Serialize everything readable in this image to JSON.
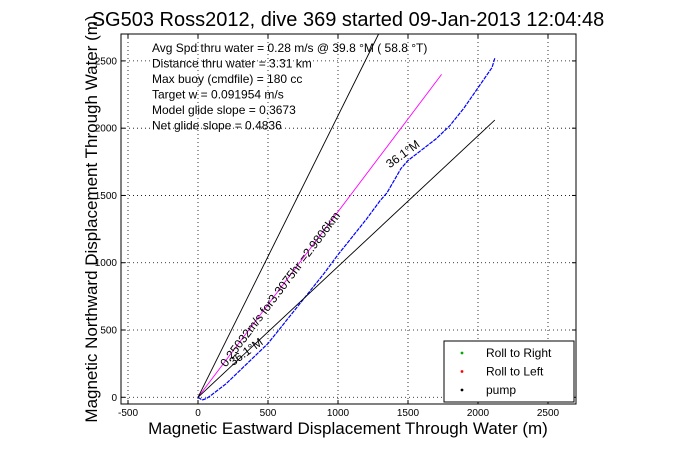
{
  "chart_data": {
    "type": "line",
    "title": "SG503 Ross2012, dive 369 started 09-Jan-2013 12:04:48",
    "xlabel": "Magnetic Eastward Displacement Through Water (m)",
    "ylabel": "Magnetic Northward Displacement Through Water (m)",
    "xlim": [
      -550,
      2700
    ],
    "ylim": [
      -50,
      2700
    ],
    "xticks": [
      -500,
      0,
      500,
      1000,
      1500,
      2000,
      2500
    ],
    "yticks": [
      0,
      500,
      1000,
      1500,
      2000,
      2500
    ],
    "xtick_labels": [
      "-500",
      "0",
      "500",
      "1000",
      "1500",
      "2000",
      "2500"
    ],
    "ytick_labels": [
      "0",
      "500",
      "1000",
      "1500",
      "2000",
      "2500"
    ],
    "grid": true,
    "info_lines": [
      "Avg Spd thru water =  0.28 m/s @  39.8   °M ( 58.8 °T)",
      "Distance thru water =  3.31 km",
      "Max buoy (cmdfile) = 180 cc",
      "Target w = 0.091954 m/s",
      "Model glide slope = 0.3673",
      "Net glide slope = 0.4836"
    ],
    "annotations": [
      {
        "text": "36.1°M",
        "x": 1370,
        "y": 1700,
        "angle": 36.1
      },
      {
        "text": "0.25032m/s for3.3075hr =2.9806km",
        "x": 200,
        "y": 220,
        "angle": 53
      },
      {
        "text": "36.1°M",
        "x": 250,
        "y": 230,
        "angle": 36.1
      }
    ],
    "series": [
      {
        "kind": "track",
        "color": "#0000ff",
        "x": [
          0,
          30,
          60,
          100,
          150,
          200,
          300,
          400,
          500,
          600,
          700,
          800,
          900,
          1000,
          1100,
          1200,
          1300,
          1350,
          1400,
          1450,
          1500,
          1600,
          1700,
          1800,
          1900,
          2000,
          2100,
          2120
        ],
        "y": [
          0,
          -20,
          -10,
          20,
          60,
          100,
          200,
          300,
          400,
          530,
          660,
          790,
          920,
          1060,
          1190,
          1320,
          1460,
          1520,
          1610,
          1700,
          1760,
          1840,
          1920,
          2020,
          2150,
          2300,
          2450,
          2520
        ]
      },
      {
        "kind": "line",
        "color": "#ff00ff",
        "x": [
          0,
          1740
        ],
        "y": [
          0,
          2400
        ]
      },
      {
        "kind": "line",
        "color": "#000000",
        "x": [
          0,
          1290
        ],
        "y": [
          0,
          2700
        ]
      },
      {
        "kind": "line",
        "color": "#000000",
        "x": [
          0,
          2120
        ],
        "y": [
          0,
          2060
        ]
      }
    ],
    "legend": {
      "position": "bottom-right",
      "entries": [
        {
          "label": "Roll to Right",
          "color": "#00aa00"
        },
        {
          "label": "Roll to Left",
          "color": "#ff0000"
        },
        {
          "label": "pump",
          "color": "#000000"
        }
      ]
    }
  }
}
